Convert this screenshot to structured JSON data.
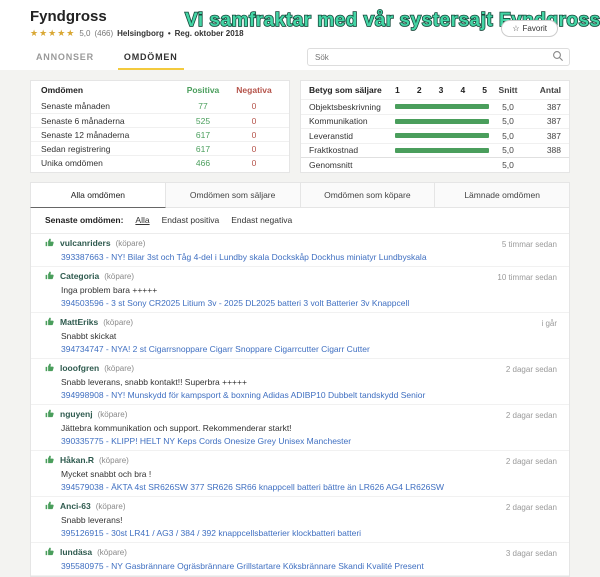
{
  "header": {
    "title": "Fyndgross",
    "stars": "★★★★★",
    "rating": "5,0",
    "rating_count": "(466)",
    "location": "Helsingborg",
    "meta_sep": "•",
    "registered": "Reg. oktober 2018",
    "banner": "Vi samfraktar med vår systersajt Fyndgross!",
    "favorit_icon": "☆",
    "favorit_label": "Favorit"
  },
  "nav": {
    "tabs": [
      {
        "label": "ANNONSER",
        "active": false
      },
      {
        "label": "OMDÖMEN",
        "active": true
      }
    ],
    "search_placeholder": "Sök"
  },
  "summary_table": {
    "title": "Omdömen",
    "col_positive": "Positiva",
    "col_negative": "Negativa",
    "rows": [
      {
        "label": "Senaste månaden",
        "positive": "77",
        "negative": "0"
      },
      {
        "label": "Senaste 6 månaderna",
        "positive": "525",
        "negative": "0"
      },
      {
        "label": "Senaste 12 månaderna",
        "positive": "617",
        "negative": "0"
      },
      {
        "label": "Sedan registrering",
        "positive": "617",
        "negative": "0"
      },
      {
        "label": "Unika omdömen",
        "positive": "466",
        "negative": "0"
      }
    ]
  },
  "rating_table": {
    "title": "Betyg som säljare",
    "scale": [
      "1",
      "2",
      "3",
      "4",
      "5"
    ],
    "col_avg": "Snitt",
    "col_count": "Antal",
    "rows": [
      {
        "label": "Objektsbeskrivning",
        "avg": "5,0",
        "count": "387",
        "bar_pct": 100
      },
      {
        "label": "Kommunikation",
        "avg": "5,0",
        "count": "387",
        "bar_pct": 100
      },
      {
        "label": "Leveranstid",
        "avg": "5,0",
        "count": "387",
        "bar_pct": 100
      },
      {
        "label": "Fraktkostnad",
        "avg": "5,0",
        "count": "388",
        "bar_pct": 100
      }
    ],
    "footer": {
      "label": "Genomsnitt",
      "avg": "5,0"
    }
  },
  "feedback_tabs": [
    {
      "label": "Alla omdömen",
      "active": true
    },
    {
      "label": "Omdömen som säljare",
      "active": false
    },
    {
      "label": "Omdömen som köpare",
      "active": false
    },
    {
      "label": "Lämnade omdömen",
      "active": false
    }
  ],
  "filter": {
    "label": "Senaste omdömen:",
    "options": [
      {
        "label": "Alla",
        "active": true
      },
      {
        "label": "Endast positiva",
        "active": false
      },
      {
        "label": "Endast negativa",
        "active": false
      }
    ]
  },
  "feedback": [
    {
      "user": "vulcanriders",
      "role": "(köpare)",
      "comment": "",
      "item": "393387663 - NY! Bilar 3st och Tåg 4-del i Lundby skala Dockskåp Dockhus miniatyr Lundbyskala",
      "time": "5 timmar sedan"
    },
    {
      "user": "Categoria",
      "role": "(köpare)",
      "comment": "Inga problem bara +++++",
      "item": "394503596 - 3 st Sony CR2025 Litium 3v - 2025 DL2025 batteri 3 volt Batterier 3v Knappcell",
      "time": "10 timmar sedan"
    },
    {
      "user": "MattEriks",
      "role": "(köpare)",
      "comment": "Snabbt skickat",
      "item": "394734747 - NYA! 2 st Cigarrsnoppare Cigarr Snoppare Cigarrcutter Cigarr Cutter",
      "time": "i går"
    },
    {
      "user": "looofgren",
      "role": "(köpare)",
      "comment": "Snabb leverans, snabb kontakt!! Superbra +++++",
      "item": "394998908 - NY! Munskydd för kampsport & boxning Adidas ADIBP10 Dubbelt tandskydd Senior",
      "time": "2 dagar sedan"
    },
    {
      "user": "nguyenj",
      "role": "(köpare)",
      "comment": "Jättebra kommunikation och support. Rekommenderar starkt!",
      "item": "390335775 - KLIPP! HELT NY Keps Cords Onesize Grey Unisex Manchester",
      "time": "2 dagar sedan"
    },
    {
      "user": "Håkan.R",
      "role": "(köpare)",
      "comment": "Mycket snabbt och bra !",
      "item": "394579038 - ÄKTA 4st SR626SW 377 SR626 SR66 knappcell batteri bättre än LR626 AG4 LR626SW",
      "time": "2 dagar sedan"
    },
    {
      "user": "Anci-63",
      "role": "(köpare)",
      "comment": "Snabb leverans!",
      "item": "395126915 - 30st LR41 / AG3 / 384 / 392 knappcellsbatterier klockbatteri batteri",
      "time": "2 dagar sedan"
    },
    {
      "user": "lundäsa",
      "role": "(köpare)",
      "comment": "",
      "item": "395580975 - NY Gasbrännare Ogräsbrännare Grillstartare Köksbrännare Skandi Kvalité Present",
      "time": "3 dagar sedan"
    }
  ],
  "colors": {
    "positive_green": "#4a9e5c",
    "negative_red": "#b5534a",
    "link_blue": "#3f6fc1",
    "accent_yellow": "#f3ca3e",
    "star_gold": "#d9a733",
    "banner_fill": "#44d5a5",
    "banner_outline": "#15473a",
    "page_bg": "#f3f3f1"
  }
}
